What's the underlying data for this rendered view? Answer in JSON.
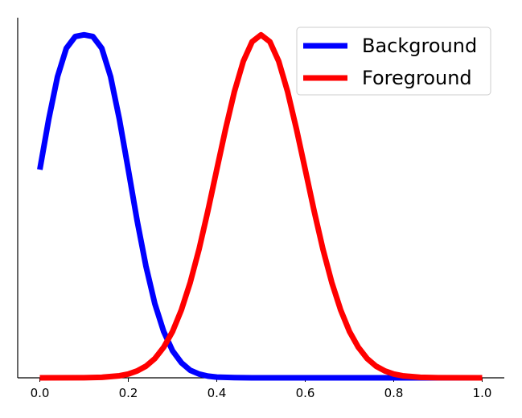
{
  "chart_data": {
    "type": "line",
    "title": "",
    "xlabel": "",
    "ylabel": "",
    "xlim": [
      -0.05,
      1.05
    ],
    "ylim": [
      0,
      1.05
    ],
    "grid": false,
    "y_ticks_visible": false,
    "legend_position": "top-right",
    "x_ticks": [
      {
        "value": 0.0,
        "label": "0.0"
      },
      {
        "value": 0.2,
        "label": "0.2"
      },
      {
        "value": 0.4,
        "label": "0.4"
      },
      {
        "value": 0.6,
        "label": "0.6"
      },
      {
        "value": 0.8,
        "label": "0.8"
      },
      {
        "value": 1.0,
        "label": "1.0"
      }
    ],
    "series": [
      {
        "name": "Background",
        "color": "#0000ff",
        "x": [
          0.0,
          0.02,
          0.04,
          0.06,
          0.08,
          0.1,
          0.12,
          0.14,
          0.16,
          0.18,
          0.2,
          0.22,
          0.24,
          0.26,
          0.28,
          0.3,
          0.32,
          0.34,
          0.36,
          0.38,
          0.4,
          0.44,
          0.48,
          0.52,
          0.6,
          0.7,
          0.8,
          0.9,
          1.0
        ],
        "y": [
          0.607,
          0.753,
          0.878,
          0.961,
          0.995,
          1.0,
          0.995,
          0.961,
          0.878,
          0.753,
          0.607,
          0.458,
          0.325,
          0.216,
          0.135,
          0.079,
          0.044,
          0.022,
          0.011,
          0.005,
          0.002,
          0.0005,
          0.0001,
          0.0,
          0.0,
          0.0,
          0.0,
          0.0,
          0.0
        ]
      },
      {
        "name": "Foreground",
        "color": "#ff0000",
        "x": [
          0.0,
          0.1,
          0.14,
          0.18,
          0.2,
          0.22,
          0.24,
          0.26,
          0.28,
          0.3,
          0.32,
          0.34,
          0.36,
          0.38,
          0.4,
          0.42,
          0.44,
          0.46,
          0.48,
          0.5,
          0.52,
          0.54,
          0.56,
          0.58,
          0.6,
          0.62,
          0.64,
          0.66,
          0.68,
          0.7,
          0.72,
          0.74,
          0.76,
          0.78,
          0.8,
          0.82,
          0.86,
          0.9,
          1.0
        ],
        "y": [
          0.0,
          0.0003,
          0.0015,
          0.0059,
          0.011,
          0.02,
          0.034,
          0.056,
          0.089,
          0.135,
          0.198,
          0.278,
          0.375,
          0.487,
          0.607,
          0.726,
          0.835,
          0.923,
          0.98,
          1.0,
          0.98,
          0.923,
          0.835,
          0.726,
          0.607,
          0.487,
          0.375,
          0.278,
          0.198,
          0.135,
          0.089,
          0.056,
          0.034,
          0.02,
          0.011,
          0.0059,
          0.0015,
          0.0003,
          0.0
        ]
      }
    ]
  }
}
